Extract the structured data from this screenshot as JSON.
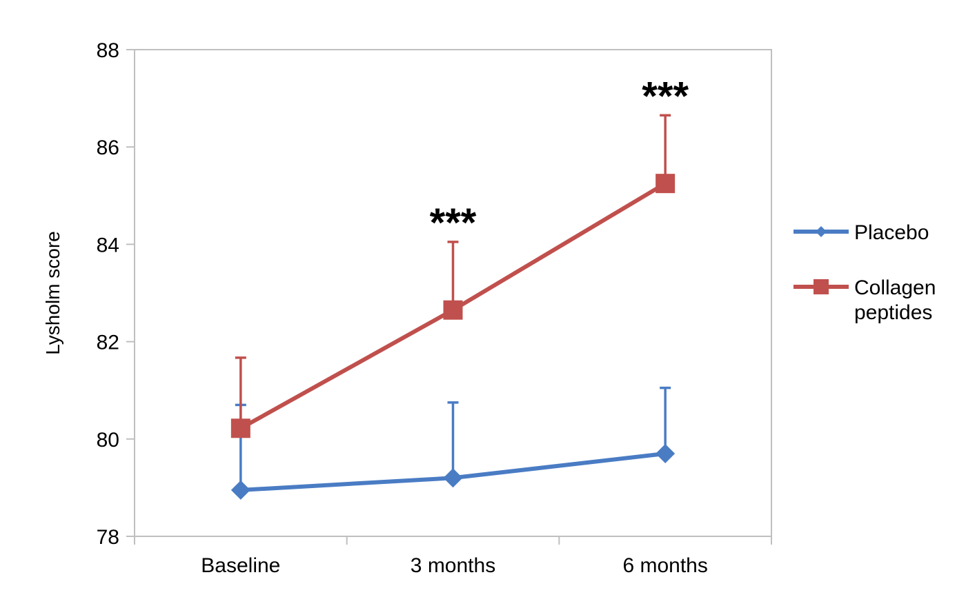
{
  "chart_data": {
    "type": "line",
    "title": "",
    "xlabel": "",
    "ylabel": "Lysholm score",
    "categories": [
      "Baseline",
      "3 months",
      "6 months"
    ],
    "ylim": [
      78,
      88
    ],
    "yticks": [
      "78",
      "80",
      "82",
      "84",
      "86",
      "88"
    ],
    "grid": false,
    "legend": "right",
    "series": [
      {
        "name": "Placebo",
        "values": [
          78.95,
          79.2,
          79.7
        ],
        "error_upper": [
          1.75,
          1.55,
          1.35
        ],
        "marker": "diamond",
        "color": "#4a7cc4"
      },
      {
        "name": "Collagen peptides",
        "name_lines": [
          "Collagen",
          "peptides"
        ],
        "values": [
          80.22,
          82.65,
          85.25
        ],
        "error_upper": [
          1.45,
          1.4,
          1.4
        ],
        "marker": "square",
        "color": "#c0504d"
      }
    ],
    "annotations": [
      {
        "category_index": 1,
        "text": "***"
      },
      {
        "category_index": 2,
        "text": "***"
      }
    ]
  }
}
